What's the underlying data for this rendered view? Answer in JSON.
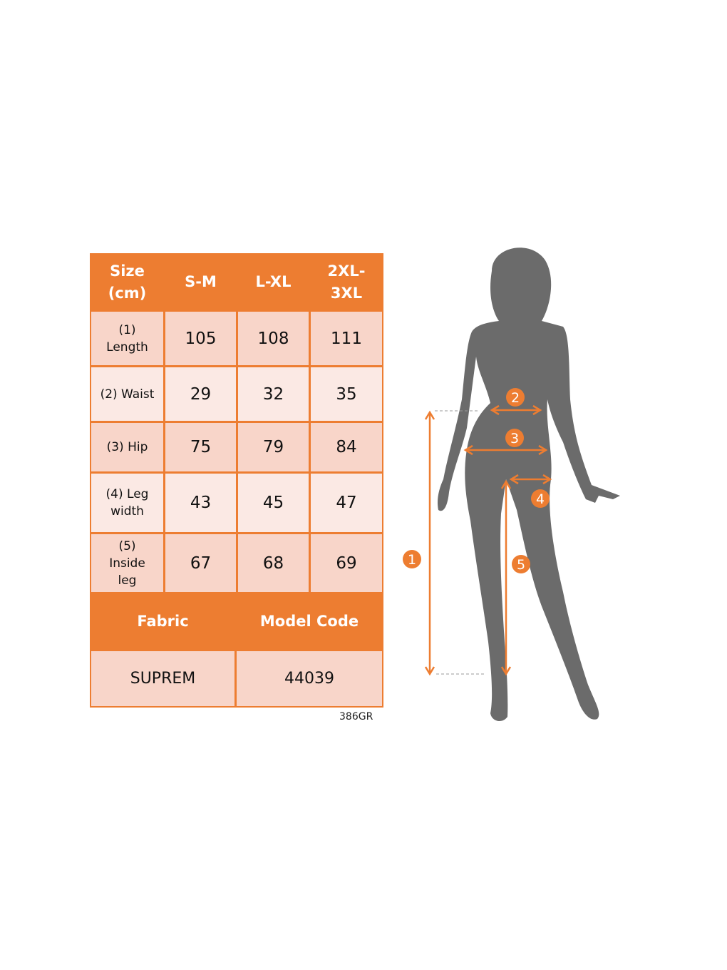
{
  "table": {
    "header": [
      "Size\n(cm)",
      "S-M",
      "L-XL",
      "2XL-\n3XL"
    ],
    "rows": [
      {
        "label": "(1)\nLength",
        "values": [
          "105",
          "108",
          "111"
        ]
      },
      {
        "label": "(2) Waist",
        "values": [
          "29",
          "32",
          "35"
        ]
      },
      {
        "label": "(3) Hip",
        "values": [
          "75",
          "79",
          "84"
        ]
      },
      {
        "label": "(4) Leg\nwidth",
        "values": [
          "43",
          "45",
          "47"
        ]
      },
      {
        "label": "(5)\nInside\nleg",
        "values": [
          "67",
          "68",
          "69"
        ]
      }
    ],
    "fabric_header": "Fabric",
    "model_code_header": "Model Code",
    "fabric_value": "SUPREM",
    "model_code_value": "44039"
  },
  "product_code": "386GR",
  "figure": {
    "markers": [
      "1",
      "2",
      "3",
      "4",
      "5"
    ],
    "colors": {
      "accent": "#ED7D31",
      "silhouette": "#6B6B6B"
    }
  }
}
